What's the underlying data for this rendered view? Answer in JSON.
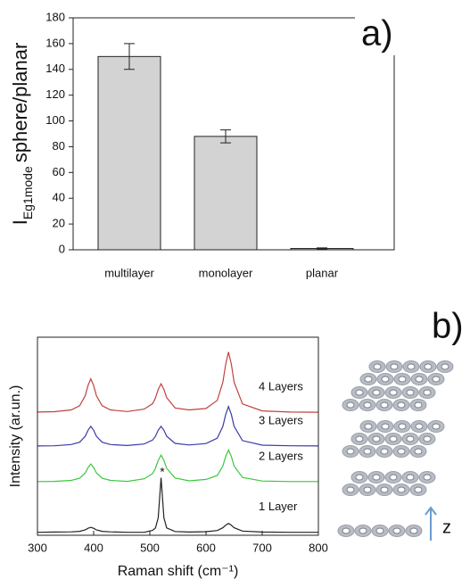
{
  "chart_data": [
    {
      "type": "bar",
      "label": "a)",
      "ylabel": "I",
      "ylabel_sub": "Eg1mode",
      "ylabel_rest": "sphere/planar",
      "categories": [
        "multilayer",
        "monolayer",
        "planar"
      ],
      "values": [
        150,
        88,
        1
      ],
      "errors": [
        10,
        5,
        0.5
      ],
      "color": "#d3d3d3",
      "ylim": [
        0,
        180
      ],
      "yticks": [
        0,
        20,
        40,
        60,
        80,
        100,
        120,
        140,
        160,
        180
      ]
    },
    {
      "type": "line",
      "label": "b)",
      "xlabel": "Raman shift (cm⁻¹)",
      "ylabel": "Intensity (ar.un.)",
      "annotation": "*",
      "axis_label_z": "z",
      "x": [
        300,
        330,
        360,
        375,
        385,
        390,
        395,
        400,
        405,
        415,
        430,
        460,
        490,
        505,
        510,
        515,
        520,
        525,
        530,
        545,
        570,
        600,
        620,
        630,
        635,
        640,
        645,
        650,
        665,
        700,
        750,
        800
      ],
      "series": [
        {
          "name": "1 Layer",
          "color": "#222222",
          "values": [
            0.15,
            0.16,
            0.17,
            0.2,
            0.27,
            0.35,
            0.4,
            0.35,
            0.27,
            0.2,
            0.17,
            0.15,
            0.15,
            0.25,
            0.37,
            0.88,
            2.9,
            0.88,
            0.37,
            0.19,
            0.16,
            0.18,
            0.24,
            0.38,
            0.51,
            0.6,
            0.51,
            0.38,
            0.21,
            0.16,
            0.15,
            0.15
          ]
        },
        {
          "name": "2 Layers",
          "color": "#3cc83c",
          "values": [
            2.71,
            2.72,
            2.77,
            2.88,
            3.15,
            3.42,
            3.6,
            3.42,
            3.15,
            2.88,
            2.77,
            2.72,
            2.85,
            3.12,
            3.38,
            3.78,
            4.05,
            3.78,
            3.38,
            2.89,
            2.75,
            2.82,
            3.02,
            3.5,
            3.98,
            4.3,
            3.98,
            3.5,
            2.92,
            2.74,
            2.71,
            2.71
          ]
        },
        {
          "name": "3 Layers",
          "color": "#3a3aa8",
          "values": [
            4.51,
            4.52,
            4.58,
            4.7,
            5.0,
            5.3,
            5.5,
            5.3,
            5.0,
            4.7,
            4.58,
            4.53,
            4.61,
            4.81,
            5.0,
            5.3,
            5.5,
            5.3,
            5.0,
            4.64,
            4.56,
            4.63,
            4.9,
            5.5,
            6.1,
            6.5,
            6.1,
            5.5,
            4.78,
            4.55,
            4.52,
            4.51
          ]
        },
        {
          "name": "4 Layers",
          "color": "#c04040",
          "values": [
            6.22,
            6.24,
            6.33,
            6.54,
            7.05,
            7.56,
            7.9,
            7.56,
            7.05,
            6.54,
            6.33,
            6.25,
            6.37,
            6.65,
            6.93,
            7.36,
            7.65,
            7.36,
            6.95,
            6.43,
            6.33,
            6.4,
            6.81,
            7.73,
            8.64,
            9.25,
            8.64,
            7.73,
            6.63,
            6.28,
            6.22,
            6.21
          ]
        }
      ],
      "xlim": [
        300,
        800
      ],
      "xticks": [
        300,
        400,
        500,
        600,
        700,
        800
      ],
      "ylim": [
        0,
        10
      ]
    }
  ]
}
